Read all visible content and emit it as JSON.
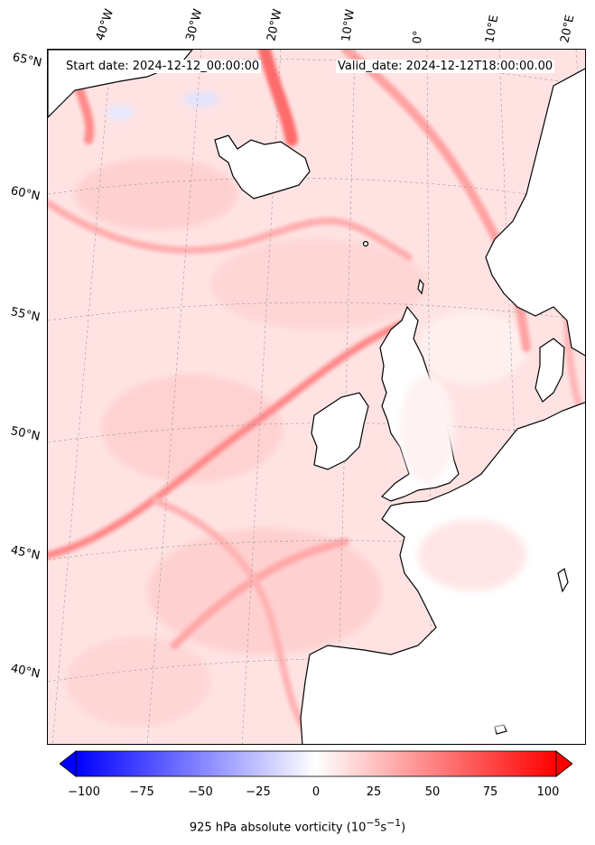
{
  "header": {
    "start_date": "Start date: 2024-12-12_00:00:00",
    "valid_date": "Valid_date: 2024-12-12T18:00:00.00"
  },
  "lon_labels": [
    "40°W",
    "30°W",
    "20°W",
    "10°W",
    "0°",
    "10°E",
    "20°E"
  ],
  "lat_labels": [
    "65°N",
    "60°N",
    "55°N",
    "50°N",
    "45°N",
    "40°N"
  ],
  "colorbar": {
    "ticks": [
      "−100",
      "−75",
      "−50",
      "−25",
      "0",
      "25",
      "50",
      "75",
      "100"
    ],
    "label": "925 hPa absolute vorticity (10",
    "label_exp1": "−5",
    "label_mid": "s",
    "label_exp2": "−1",
    "label_end": ")",
    "min": -100,
    "max": 100,
    "colors": {
      "low": "#0000ff",
      "mid": "#ffffff",
      "high": "#ff0000"
    }
  },
  "map": {
    "background_color": "#ffe3e3",
    "land_color": "#ffffff",
    "coastline_color": "#000000"
  }
}
